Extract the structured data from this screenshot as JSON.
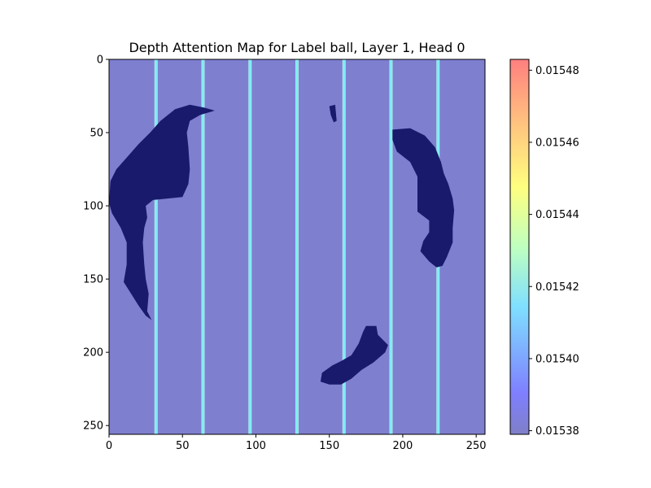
{
  "chart_data": {
    "type": "heatmap",
    "title": "Depth Attention Map for Label ball, Layer 1, Head 0",
    "xlabel": "",
    "ylabel": "",
    "xlim": [
      0,
      256
    ],
    "ylim": [
      256,
      0
    ],
    "x_ticks": [
      0,
      50,
      100,
      150,
      200,
      250
    ],
    "y_ticks": [
      0,
      50,
      100,
      150,
      200,
      250
    ],
    "colormap": "jet",
    "alpha": 0.5,
    "background_value": 0.01538,
    "colorbar": {
      "range": [
        0.015379,
        0.015483
      ],
      "ticks": [
        0.01538,
        0.0154,
        0.01542,
        0.01544,
        0.01546,
        0.01548
      ],
      "tick_labels": [
        "0.01538",
        "0.01540",
        "0.01542",
        "0.01544",
        "0.01546",
        "0.01548"
      ]
    },
    "highlight_columns": [
      {
        "x": 32,
        "value": 0.015415
      },
      {
        "x": 64,
        "value": 0.015418
      },
      {
        "x": 96,
        "value": 0.015418
      },
      {
        "x": 128,
        "value": 0.015418
      },
      {
        "x": 160,
        "value": 0.015418
      },
      {
        "x": 192,
        "value": 0.015418
      },
      {
        "x": 224,
        "value": 0.015418
      }
    ],
    "mask_regions": [
      {
        "name": "left-blob",
        "points": [
          [
            1,
            83
          ],
          [
            5,
            75
          ],
          [
            12,
            67
          ],
          [
            20,
            58
          ],
          [
            28,
            50
          ],
          [
            35,
            42
          ],
          [
            45,
            34
          ],
          [
            55,
            31
          ],
          [
            65,
            33
          ],
          [
            72,
            35
          ],
          [
            62,
            38
          ],
          [
            55,
            42
          ],
          [
            53,
            50
          ],
          [
            54,
            60
          ],
          [
            55,
            75
          ],
          [
            54,
            85
          ],
          [
            50,
            94
          ],
          [
            30,
            96
          ],
          [
            25,
            100
          ],
          [
            26,
            108
          ],
          [
            24,
            115
          ],
          [
            23,
            125
          ],
          [
            24,
            140
          ],
          [
            25,
            150
          ],
          [
            27,
            160
          ],
          [
            26,
            172
          ],
          [
            29,
            178
          ],
          [
            25,
            175
          ],
          [
            20,
            168
          ],
          [
            15,
            160
          ],
          [
            10,
            152
          ],
          [
            12,
            140
          ],
          [
            12,
            125
          ],
          [
            8,
            115
          ],
          [
            2,
            105
          ],
          [
            0,
            98
          ]
        ]
      },
      {
        "name": "small-dot",
        "points": [
          [
            150,
            32
          ],
          [
            154,
            31
          ],
          [
            155,
            42
          ],
          [
            153,
            43
          ],
          [
            151,
            38
          ]
        ]
      },
      {
        "name": "right-blob",
        "points": [
          [
            193,
            48
          ],
          [
            205,
            47
          ],
          [
            215,
            52
          ],
          [
            222,
            60
          ],
          [
            226,
            70
          ],
          [
            228,
            78
          ],
          [
            231,
            85
          ],
          [
            234,
            95
          ],
          [
            235,
            103
          ],
          [
            234,
            115
          ],
          [
            234,
            125
          ],
          [
            230,
            135
          ],
          [
            227,
            141
          ],
          [
            223,
            142
          ],
          [
            218,
            138
          ],
          [
            212,
            131
          ],
          [
            214,
            124
          ],
          [
            218,
            118
          ],
          [
            218,
            110
          ],
          [
            210,
            104
          ],
          [
            210,
            95
          ],
          [
            210,
            80
          ],
          [
            205,
            70
          ],
          [
            196,
            63
          ],
          [
            193,
            55
          ]
        ]
      },
      {
        "name": "bottom-blob",
        "points": [
          [
            145,
            214
          ],
          [
            152,
            209
          ],
          [
            158,
            206
          ],
          [
            165,
            202
          ],
          [
            170,
            194
          ],
          [
            173,
            186
          ],
          [
            175,
            182
          ],
          [
            182,
            182
          ],
          [
            183,
            188
          ],
          [
            190,
            195
          ],
          [
            188,
            200
          ],
          [
            180,
            207
          ],
          [
            172,
            212
          ],
          [
            165,
            218
          ],
          [
            158,
            222
          ],
          [
            150,
            222
          ],
          [
            144,
            220
          ]
        ]
      }
    ]
  }
}
